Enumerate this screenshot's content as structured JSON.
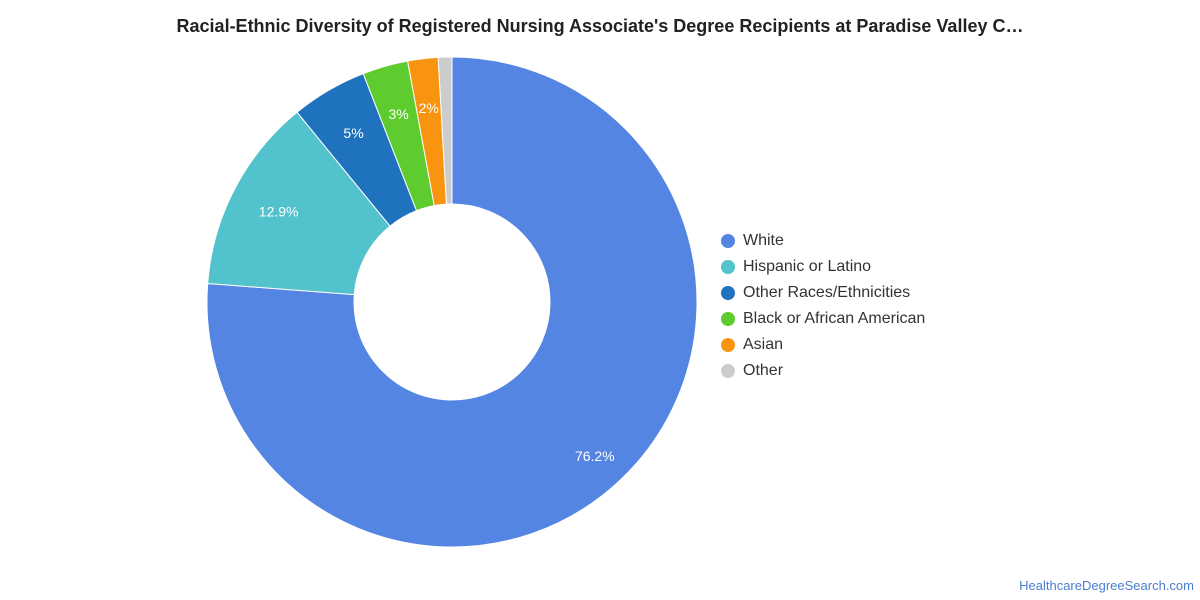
{
  "chart_data": {
    "type": "pie",
    "title": "Racial-Ethnic Diversity of Registered Nursing Associate's Degree Recipients at Paradise Valley C…",
    "labels": [
      "White",
      "Hispanic or Latino",
      "Other Races/Ethnicities",
      "Black or African American",
      "Asian",
      "Other"
    ],
    "values": [
      76.2,
      12.9,
      5,
      3,
      2,
      0.9
    ],
    "data_labels": [
      "76.2%",
      "12.9%",
      "5%",
      "3%",
      "2%",
      ""
    ],
    "colors": [
      "#5585e3",
      "#52c2cc",
      "#1f72be",
      "#5ecc2e",
      "#f99411",
      "#cccccc"
    ],
    "legend": "right",
    "donut": true
  },
  "footer": {
    "source": "HealthcareDegreeSearch.com"
  }
}
